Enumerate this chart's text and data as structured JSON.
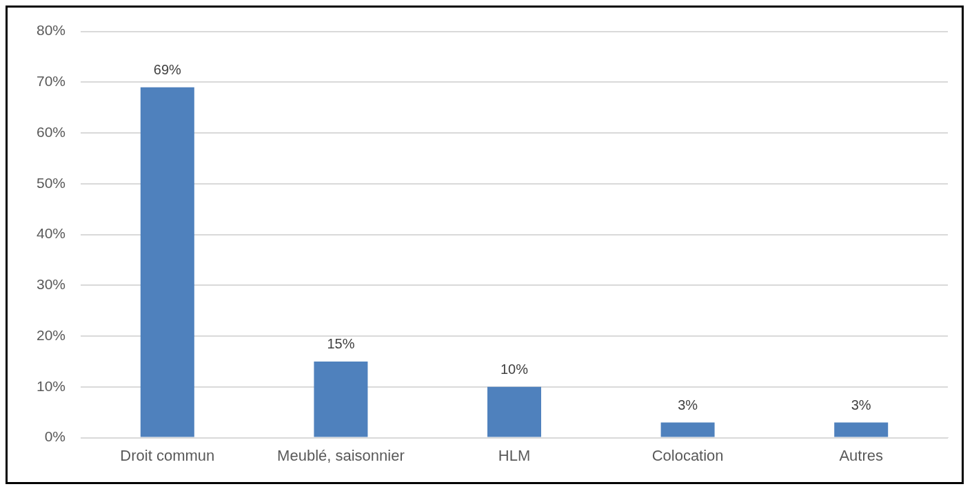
{
  "chart_data": {
    "type": "bar",
    "categories": [
      "Droit commun",
      "Meublé, saisonnier",
      "HLM",
      "Colocation",
      "Autres"
    ],
    "values": [
      69,
      15,
      10,
      3,
      3
    ],
    "value_labels": [
      "69%",
      "15%",
      "10%",
      "3%",
      "3%"
    ],
    "color": "#4f81bd",
    "ylim": [
      0,
      80
    ],
    "yticks": [
      {
        "value": 0,
        "label": "0%"
      },
      {
        "value": 10,
        "label": "10%"
      },
      {
        "value": 20,
        "label": "20%"
      },
      {
        "value": 30,
        "label": "30%"
      },
      {
        "value": 40,
        "label": "40%"
      },
      {
        "value": 50,
        "label": "50%"
      },
      {
        "value": 60,
        "label": "60%"
      },
      {
        "value": 70,
        "label": "70%"
      },
      {
        "value": 80,
        "label": "80%"
      }
    ],
    "grid": "y",
    "legend": false
  }
}
